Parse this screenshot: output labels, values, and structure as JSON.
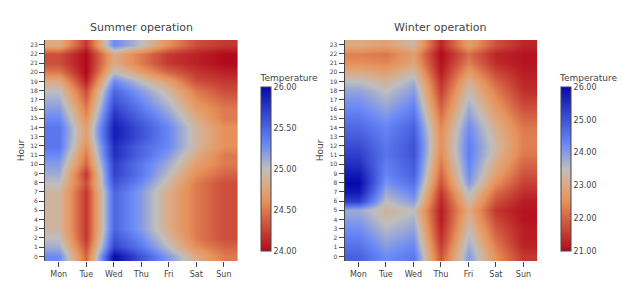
{
  "chart_data": [
    {
      "type": "heatmap",
      "title": "Summer operation",
      "ylabel": "Hour",
      "categories": [
        "Mon",
        "Tue",
        "Wed",
        "Thu",
        "Fri",
        "Sat",
        "Sun"
      ],
      "y": [
        0,
        1,
        2,
        3,
        4,
        5,
        6,
        7,
        8,
        9,
        10,
        11,
        12,
        13,
        14,
        15,
        16,
        17,
        18,
        19,
        20,
        21,
        22,
        23
      ],
      "ylim": [
        -0.5,
        23.5
      ],
      "yticks": [
        0,
        1,
        2,
        3,
        4,
        5,
        6,
        7,
        8,
        9,
        10,
        11,
        12,
        13,
        14,
        15,
        16,
        17,
        18,
        19,
        20,
        21,
        22,
        23
      ],
      "colorbar_label": "Temperature",
      "zlim": [
        24.0,
        26.0
      ],
      "zticks": [
        {
          "value": 24.0,
          "label": "24.00"
        },
        {
          "value": 24.5,
          "label": "24.50"
        },
        {
          "value": 25.0,
          "label": "25.00"
        },
        {
          "value": 25.5,
          "label": "25.50"
        },
        {
          "value": 26.0,
          "label": "26.00"
        }
      ],
      "values": [
        [
          25.3,
          24.4,
          26.0,
          25.6,
          25.2,
          24.8,
          24.5
        ],
        [
          25.1,
          24.3,
          25.7,
          25.4,
          25.0,
          24.6,
          24.4
        ],
        [
          25.0,
          24.2,
          25.6,
          25.3,
          24.9,
          24.5,
          24.3
        ],
        [
          24.9,
          24.2,
          25.5,
          25.2,
          24.8,
          24.5,
          24.3
        ],
        [
          24.9,
          24.2,
          25.5,
          25.2,
          24.8,
          24.5,
          24.3
        ],
        [
          24.9,
          24.2,
          25.5,
          25.2,
          24.8,
          24.5,
          24.3
        ],
        [
          24.9,
          24.2,
          25.5,
          25.2,
          24.8,
          24.5,
          24.3
        ],
        [
          24.9,
          24.2,
          25.5,
          25.2,
          24.8,
          24.5,
          24.3
        ],
        [
          25.0,
          24.3,
          25.6,
          25.3,
          24.9,
          24.5,
          24.3
        ],
        [
          25.1,
          24.2,
          25.7,
          25.4,
          25.0,
          24.6,
          24.4
        ],
        [
          25.2,
          24.4,
          25.7,
          25.4,
          25.1,
          24.7,
          24.5
        ],
        [
          25.3,
          24.5,
          25.8,
          25.5,
          25.2,
          24.8,
          24.5
        ],
        [
          25.4,
          24.6,
          25.8,
          25.5,
          25.3,
          24.9,
          24.6
        ],
        [
          25.4,
          24.7,
          25.9,
          25.6,
          25.3,
          24.9,
          24.6
        ],
        [
          25.4,
          24.7,
          25.9,
          25.6,
          25.3,
          24.9,
          24.6
        ],
        [
          25.3,
          24.6,
          25.8,
          25.5,
          25.2,
          24.8,
          24.5
        ],
        [
          25.2,
          24.5,
          25.7,
          25.4,
          25.1,
          24.7,
          24.5
        ],
        [
          25.1,
          24.4,
          25.6,
          25.3,
          25.0,
          24.6,
          24.4
        ],
        [
          25.0,
          24.3,
          25.5,
          25.2,
          24.9,
          24.5,
          24.3
        ],
        [
          24.8,
          24.1,
          25.3,
          25.0,
          24.7,
          24.3,
          24.2
        ],
        [
          24.5,
          24.0,
          25.0,
          24.7,
          24.4,
          24.2,
          24.1
        ],
        [
          24.3,
          24.0,
          24.8,
          24.5,
          24.2,
          24.1,
          24.0
        ],
        [
          24.3,
          24.0,
          24.8,
          24.5,
          24.2,
          24.1,
          24.0
        ],
        [
          24.8,
          24.2,
          25.3,
          25.0,
          24.6,
          24.3,
          24.2
        ]
      ]
    },
    {
      "type": "heatmap",
      "title": "Winter operation",
      "ylabel": "Hour",
      "categories": [
        "Mon",
        "Tue",
        "Wed",
        "Thu",
        "Fri",
        "Sat",
        "Sun"
      ],
      "y": [
        0,
        1,
        2,
        3,
        4,
        5,
        6,
        7,
        8,
        9,
        10,
        11,
        12,
        13,
        14,
        15,
        16,
        17,
        18,
        19,
        20,
        21,
        22,
        23
      ],
      "ylim": [
        -0.5,
        23.5
      ],
      "yticks": [
        0,
        1,
        2,
        3,
        4,
        5,
        6,
        7,
        8,
        9,
        10,
        11,
        12,
        13,
        14,
        15,
        16,
        17,
        18,
        19,
        20,
        21,
        22,
        23
      ],
      "colorbar_label": "Temperature",
      "zlim": [
        21.0,
        26.0
      ],
      "zticks": [
        {
          "value": 21.0,
          "label": "21.00"
        },
        {
          "value": 22.0,
          "label": "22.00"
        },
        {
          "value": 23.0,
          "label": "23.00"
        },
        {
          "value": 24.0,
          "label": "24.00"
        },
        {
          "value": 25.0,
          "label": "25.00"
        },
        {
          "value": 26.0,
          "label": "26.00"
        }
      ],
      "values": [
        [
          24.8,
          24.2,
          24.5,
          21.8,
          24.0,
          22.5,
          21.5
        ],
        [
          24.6,
          24.0,
          24.3,
          21.6,
          23.8,
          22.3,
          21.3
        ],
        [
          24.4,
          23.8,
          24.1,
          21.4,
          23.6,
          22.1,
          21.2
        ],
        [
          24.2,
          23.6,
          23.9,
          21.3,
          23.4,
          21.9,
          21.2
        ],
        [
          24.0,
          23.4,
          23.7,
          21.2,
          23.2,
          21.7,
          21.1
        ],
        [
          23.8,
          23.2,
          23.5,
          21.2,
          23.0,
          21.5,
          21.1
        ],
        [
          25.3,
          23.5,
          24.0,
          21.3,
          23.3,
          21.8,
          21.2
        ],
        [
          25.8,
          23.8,
          24.3,
          21.5,
          23.6,
          22.1,
          21.4
        ],
        [
          26.0,
          24.1,
          24.6,
          21.8,
          24.0,
          22.5,
          21.6
        ],
        [
          25.8,
          24.3,
          24.8,
          22.0,
          24.2,
          22.8,
          21.8
        ],
        [
          25.5,
          24.4,
          24.9,
          22.2,
          24.3,
          23.0,
          22.0
        ],
        [
          25.3,
          24.5,
          25.0,
          22.4,
          24.4,
          23.2,
          22.2
        ],
        [
          25.1,
          24.5,
          25.0,
          22.5,
          24.4,
          23.3,
          22.3
        ],
        [
          24.9,
          24.4,
          24.9,
          22.5,
          24.3,
          23.2,
          22.3
        ],
        [
          24.7,
          24.3,
          24.8,
          22.4,
          24.2,
          23.1,
          22.2
        ],
        [
          24.5,
          24.1,
          24.6,
          22.2,
          24.0,
          22.9,
          22.0
        ],
        [
          24.3,
          23.9,
          24.4,
          22.0,
          23.8,
          22.7,
          21.8
        ],
        [
          24.1,
          23.7,
          24.2,
          21.8,
          23.6,
          22.5,
          21.6
        ],
        [
          23.9,
          23.5,
          24.0,
          21.6,
          23.4,
          22.3,
          21.4
        ],
        [
          23.5,
          23.2,
          23.7,
          21.4,
          23.1,
          22.0,
          21.3
        ],
        [
          23.0,
          22.8,
          23.3,
          21.2,
          22.7,
          21.7,
          21.2
        ],
        [
          22.5,
          22.4,
          22.9,
          21.1,
          22.3,
          21.4,
          21.1
        ],
        [
          22.3,
          22.2,
          22.7,
          21.0,
          22.1,
          21.3,
          21.1
        ],
        [
          23.0,
          22.8,
          23.3,
          21.3,
          22.8,
          21.8,
          21.3
        ]
      ]
    }
  ]
}
